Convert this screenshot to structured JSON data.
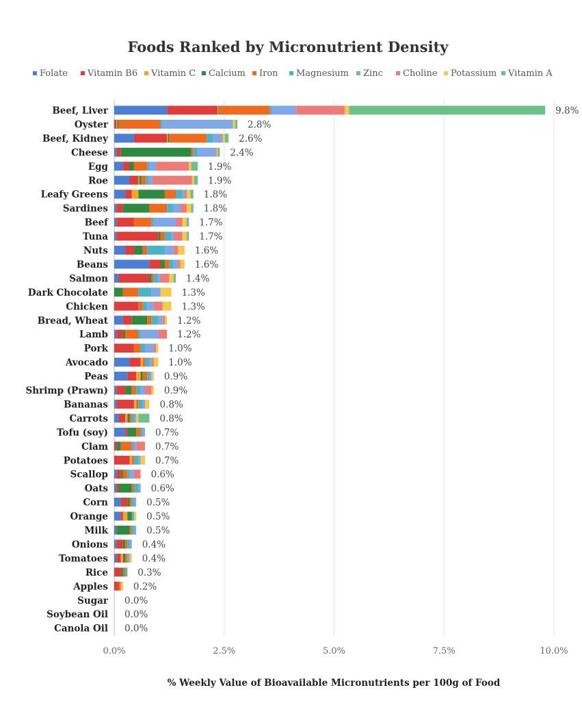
{
  "chart_data": {
    "type": "bar",
    "orientation": "horizontal",
    "stacked": true,
    "title": "Foods Ranked by Micronutrient Density",
    "xlabel": "% Weekly Value of Bioavailable Micronutrients per 100g of Food",
    "ylabel": "",
    "xlim": [
      0,
      10
    ],
    "x_ticks": [
      0,
      2.5,
      5,
      7.5,
      10
    ],
    "x_tick_labels": [
      "0.0%",
      "2.5%",
      "5.0%",
      "7.5%",
      "10.0%"
    ],
    "grid": true,
    "legend_position": "top",
    "series_names": [
      "Folate",
      "Vitamin B6",
      "Vitamin C",
      "Calcium",
      "Iron",
      "Magnesium",
      "Zinc",
      "Choline",
      "Potassium",
      "Vitamin A"
    ],
    "series_colors": [
      "#4a7fd4",
      "#e03c3c",
      "#f5a623",
      "#2e8b3e",
      "#f06a1e",
      "#4ab3c6",
      "#7fa8e8",
      "#ef7a7a",
      "#f7c84a",
      "#6cc08a"
    ],
    "categories": [
      "Beef, Liver",
      "Oyster",
      "Beef, Kidney",
      "Cheese",
      "Egg",
      "Roe",
      "Leafy Greens",
      "Sardines",
      "Beef",
      "Tuna",
      "Nuts",
      "Beans",
      "Salmon",
      "Dark Chocolate",
      "Chicken",
      "Bread, Wheat",
      "Lamb",
      "Pork",
      "Avocado",
      "Peas",
      "Shrimp (Prawn)",
      "Bananas",
      "Carrots",
      "Tofu (soy)",
      "Clam",
      "Potatoes",
      "Scallop",
      "Oats",
      "Corn",
      "Orange",
      "Milk",
      "Onions",
      "Tomatoes",
      "Rice",
      "Apples",
      "Sugar",
      "Soybean Oil",
      "Canola Oil"
    ],
    "totals": [
      9.8,
      2.8,
      2.6,
      2.4,
      1.9,
      1.9,
      1.8,
      1.8,
      1.7,
      1.7,
      1.6,
      1.6,
      1.4,
      1.3,
      1.3,
      1.2,
      1.2,
      1.0,
      1.0,
      0.9,
      0.9,
      0.8,
      0.8,
      0.7,
      0.7,
      0.7,
      0.6,
      0.6,
      0.5,
      0.5,
      0.5,
      0.4,
      0.4,
      0.3,
      0.2,
      0.0,
      0.0,
      0.0
    ],
    "total_labels": [
      "9.8%",
      "2.8%",
      "2.6%",
      "2.4%",
      "1.9%",
      "1.9%",
      "1.8%",
      "1.8%",
      "1.7%",
      "1.7%",
      "1.6%",
      "1.6%",
      "1.4%",
      "1.3%",
      "1.3%",
      "1.2%",
      "1.2%",
      "1.0%",
      "1.0%",
      "0.9%",
      "0.9%",
      "0.8%",
      "0.8%",
      "0.7%",
      "0.7%",
      "0.7%",
      "0.6%",
      "0.6%",
      "0.5%",
      "0.5%",
      "0.5%",
      "0.4%",
      "0.4%",
      "0.3%",
      "0.2%",
      "0.0%",
      "0.0%",
      "0.0%"
    ],
    "segments": [
      [
        1.2,
        1.15,
        0.02,
        0.02,
        1.15,
        0.05,
        0.55,
        1.1,
        0.1,
        4.46
      ],
      [
        0.0,
        0.05,
        0.02,
        0.03,
        0.95,
        0.05,
        1.6,
        0.0,
        0.05,
        0.05
      ],
      [
        0.45,
        0.75,
        0.02,
        0.03,
        0.85,
        0.15,
        0.2,
        0.02,
        0.05,
        0.08
      ],
      [
        0.05,
        0.1,
        0.0,
        1.6,
        0.05,
        0.1,
        0.4,
        0.03,
        0.02,
        0.05
      ],
      [
        0.2,
        0.15,
        0.0,
        0.1,
        0.3,
        0.05,
        0.15,
        0.75,
        0.05,
        0.15
      ],
      [
        0.35,
        0.2,
        0.02,
        0.05,
        0.1,
        0.05,
        0.1,
        0.9,
        0.05,
        0.08
      ],
      [
        0.25,
        0.15,
        0.15,
        0.6,
        0.25,
        0.15,
        0.05,
        0.05,
        0.08,
        0.07
      ],
      [
        0.05,
        0.15,
        0.0,
        0.6,
        0.4,
        0.15,
        0.15,
        0.15,
        0.1,
        0.05
      ],
      [
        0.05,
        0.4,
        0.0,
        0.0,
        0.4,
        0.05,
        0.5,
        0.15,
        0.1,
        0.05
      ],
      [
        0.05,
        0.95,
        0.0,
        0.05,
        0.1,
        0.15,
        0.05,
        0.2,
        0.1,
        0.05
      ],
      [
        0.25,
        0.2,
        0.0,
        0.2,
        0.1,
        0.4,
        0.2,
        0.1,
        0.15,
        0.0
      ],
      [
        0.8,
        0.25,
        0.0,
        0.1,
        0.1,
        0.1,
        0.1,
        0.05,
        0.1,
        0.0
      ],
      [
        0.1,
        0.7,
        0.0,
        0.05,
        0.05,
        0.1,
        0.05,
        0.2,
        0.1,
        0.05
      ],
      [
        0.0,
        0.0,
        0.0,
        0.2,
        0.35,
        0.3,
        0.2,
        0.0,
        0.25,
        0.0
      ],
      [
        0.0,
        0.55,
        0.0,
        0.0,
        0.1,
        0.1,
        0.15,
        0.2,
        0.2,
        0.0
      ],
      [
        0.2,
        0.2,
        0.0,
        0.35,
        0.1,
        0.15,
        0.1,
        0.05,
        0.05,
        0.0
      ],
      [
        0.05,
        0.15,
        0.0,
        0.05,
        0.3,
        0.05,
        0.4,
        0.2,
        0.0,
        0.0
      ],
      [
        0.0,
        0.45,
        0.0,
        0.0,
        0.15,
        0.1,
        0.2,
        0.05,
        0.05,
        0.0
      ],
      [
        0.35,
        0.25,
        0.05,
        0.0,
        0.05,
        0.1,
        0.05,
        0.05,
        0.1,
        0.0
      ],
      [
        0.3,
        0.2,
        0.1,
        0.05,
        0.1,
        0.05,
        0.05,
        0.0,
        0.05,
        0.0
      ],
      [
        0.05,
        0.2,
        0.0,
        0.15,
        0.1,
        0.1,
        0.1,
        0.15,
        0.05,
        0.0
      ],
      [
        0.05,
        0.4,
        0.05,
        0.0,
        0.05,
        0.1,
        0.05,
        0.0,
        0.1,
        0.0
      ],
      [
        0.1,
        0.15,
        0.05,
        0.05,
        0.05,
        0.05,
        0.05,
        0.0,
        0.05,
        0.25
      ],
      [
        0.25,
        0.05,
        0.0,
        0.2,
        0.1,
        0.05,
        0.05,
        0.0,
        0.0,
        0.0
      ],
      [
        0.0,
        0.05,
        0.0,
        0.1,
        0.25,
        0.05,
        0.05,
        0.2,
        0.0,
        0.0
      ],
      [
        0.0,
        0.35,
        0.05,
        0.0,
        0.05,
        0.1,
        0.05,
        0.0,
        0.1,
        0.0
      ],
      [
        0.05,
        0.1,
        0.0,
        0.05,
        0.1,
        0.05,
        0.1,
        0.15,
        0.0,
        0.0
      ],
      [
        0.05,
        0.05,
        0.0,
        0.3,
        0.05,
        0.1,
        0.05,
        0.0,
        0.0,
        0.0
      ],
      [
        0.15,
        0.15,
        0.0,
        0.05,
        0.05,
        0.05,
        0.05,
        0.0,
        0.0,
        0.0
      ],
      [
        0.15,
        0.05,
        0.1,
        0.1,
        0.0,
        0.05,
        0.0,
        0.0,
        0.05,
        0.0
      ],
      [
        0.05,
        0.0,
        0.0,
        0.3,
        0.05,
        0.05,
        0.05,
        0.0,
        0.0,
        0.0
      ],
      [
        0.05,
        0.15,
        0.0,
        0.05,
        0.05,
        0.05,
        0.05,
        0.0,
        0.0,
        0.0
      ],
      [
        0.05,
        0.1,
        0.05,
        0.05,
        0.05,
        0.0,
        0.05,
        0.0,
        0.05,
        0.0
      ],
      [
        0.0,
        0.15,
        0.0,
        0.05,
        0.05,
        0.05,
        0.0,
        0.0,
        0.0,
        0.0
      ],
      [
        0.0,
        0.1,
        0.0,
        0.0,
        0.05,
        0.0,
        0.0,
        0.0,
        0.05,
        0.0
      ],
      [
        0.0,
        0.0,
        0.0,
        0.0,
        0.0,
        0.0,
        0.0,
        0.0,
        0.0,
        0.0
      ],
      [
        0.0,
        0.0,
        0.0,
        0.0,
        0.0,
        0.0,
        0.0,
        0.0,
        0.0,
        0.0
      ],
      [
        0.0,
        0.0,
        0.0,
        0.0,
        0.0,
        0.0,
        0.0,
        0.0,
        0.0,
        0.0
      ]
    ]
  }
}
